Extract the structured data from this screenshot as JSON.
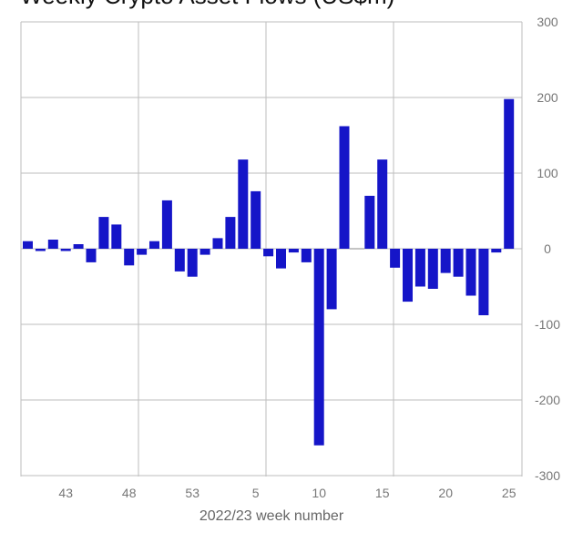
{
  "chart_data": {
    "type": "bar",
    "title": "Weekly Crypto Asset Flows (US$m)",
    "xlabel": "2022/23 week number",
    "ylabel": "",
    "ylim": [
      -300,
      300
    ],
    "yticks": [
      "300",
      "200",
      "100",
      "0",
      "-100",
      "-200",
      "-300"
    ],
    "y_axis_position": "right",
    "grid": true,
    "bar_color": "#1515c8",
    "x_tick_labels": [
      {
        "label": "43",
        "index": 3
      },
      {
        "label": "48",
        "index": 8
      },
      {
        "label": "53",
        "index": 13
      },
      {
        "label": "5",
        "index": 18
      },
      {
        "label": "10",
        "index": 23
      },
      {
        "label": "15",
        "index": 28
      },
      {
        "label": "20",
        "index": 33
      },
      {
        "label": "25",
        "index": 38
      }
    ],
    "values": [
      10,
      -3,
      12,
      -3,
      6,
      -18,
      42,
      32,
      -22,
      -8,
      10,
      64,
      -30,
      -37,
      -8,
      14,
      42,
      118,
      76,
      -10,
      -26,
      -5,
      -18,
      -260,
      -80,
      162,
      0,
      70,
      118,
      -25,
      -70,
      -50,
      -53,
      -32,
      -37,
      -62,
      -88,
      -5,
      198
    ]
  }
}
